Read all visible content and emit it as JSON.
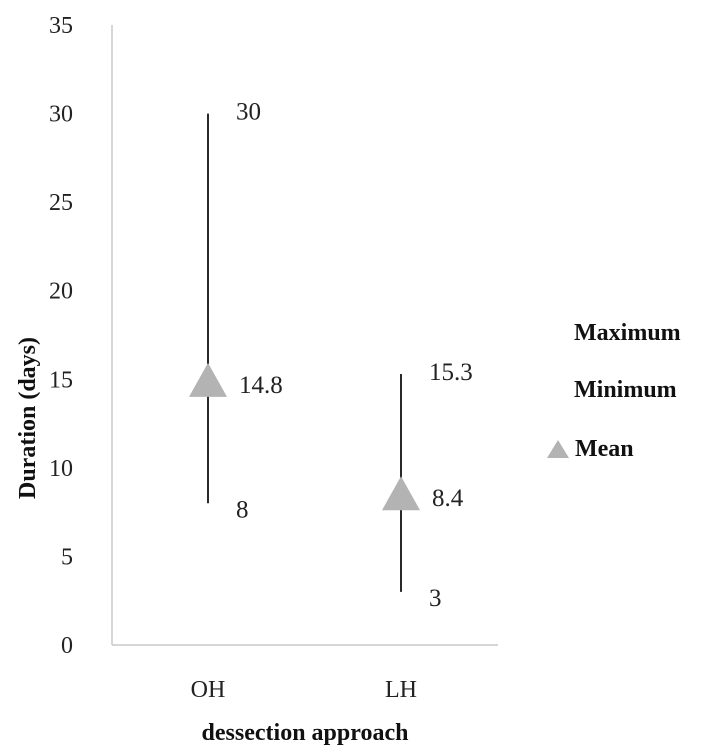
{
  "chart_data": {
    "type": "scatter",
    "title": "",
    "xlabel": "dessection approach",
    "ylabel": "Duration (days)",
    "ylim": [
      0,
      35
    ],
    "yticks": [
      "0",
      "5",
      "10",
      "15",
      "20",
      "25",
      "30",
      "35"
    ],
    "categories": [
      "OH",
      "LH"
    ],
    "series": [
      {
        "name": "Maximum",
        "values": [
          30,
          15.3
        ],
        "labels": [
          "30",
          "15.3"
        ]
      },
      {
        "name": "Minimum",
        "values": [
          8,
          3
        ],
        "labels": [
          "8",
          "3"
        ]
      },
      {
        "name": "Mean",
        "values": [
          14.8,
          8.4
        ],
        "labels": [
          "14.8",
          "8.4"
        ]
      }
    ],
    "legend": {
      "position": "right",
      "items": [
        "Maximum",
        "Minimum",
        "Mean"
      ]
    },
    "grid": false,
    "colors": {
      "mean_marker": "#b3b3b3",
      "range_line": "#2a2a2a",
      "axis_line": "#c8c8c8",
      "text": "#222222"
    }
  }
}
